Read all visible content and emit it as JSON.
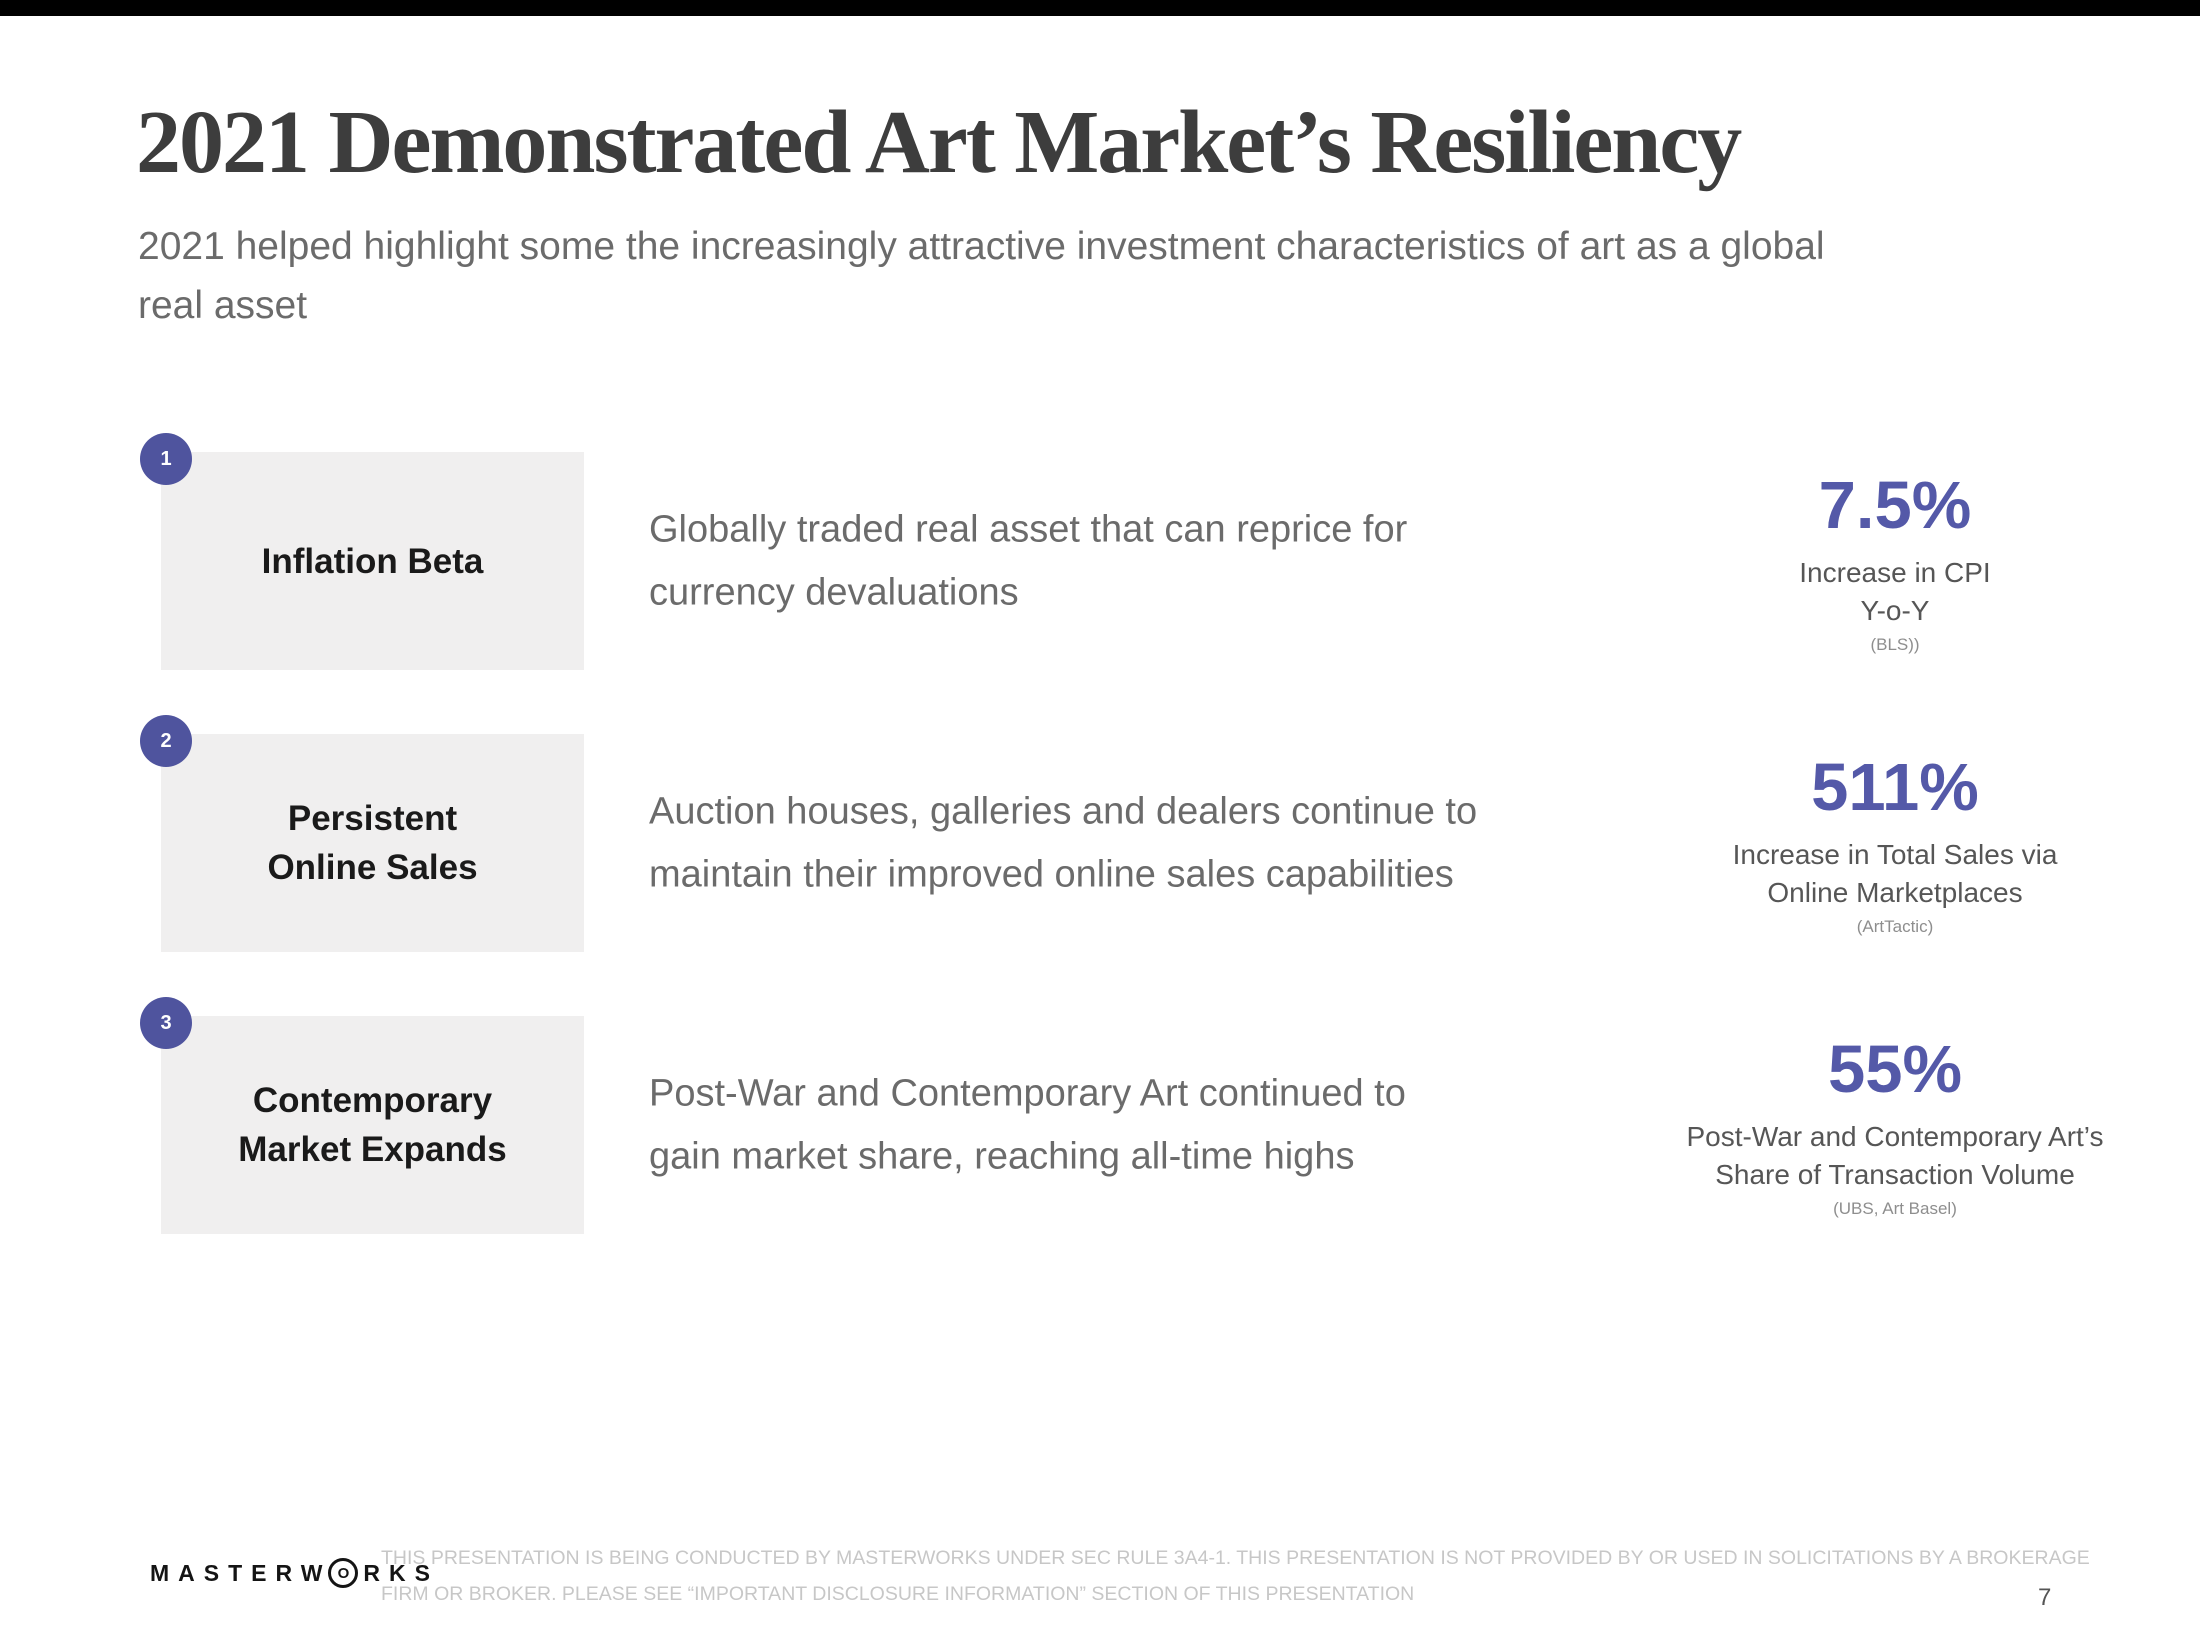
{
  "slide": {
    "title": "2021 Demonstrated Art Market’s Resiliency",
    "subtitle": "2021 helped highlight some the increasingly attractive investment characteristics of art as a global\nreal asset",
    "rows": [
      {
        "number": "1",
        "label": "Inflation Beta",
        "description": "Globally traded real asset that can reprice for\ncurrency devaluations",
        "stat": "7.5%",
        "caption": "Increase in CPI\nY-o-Y",
        "source": "(BLS))"
      },
      {
        "number": "2",
        "label": "Persistent\nOnline Sales",
        "description": "Auction houses, galleries and dealers continue to\nmaintain their improved online sales capabilities",
        "stat": "511%",
        "caption": "Increase in Total Sales via\nOnline Marketplaces",
        "source": "(ArtTactic)"
      },
      {
        "number": "3",
        "label": "Contemporary\nMarket Expands",
        "description": "Post-War and Contemporary Art continued to\ngain market share, reaching all-time highs",
        "stat": "55%",
        "caption": "Post-War and Contemporary Art’s\nShare of Transaction Volume",
        "source": "(UBS, Art Basel)"
      }
    ],
    "footer": {
      "logo_prefix": "MASTERW",
      "logo_o": "O",
      "logo_suffix": "RKS",
      "disclaimer": "THIS PRESENTATION  IS BEING CONDUCTED BY MASTERWORKS UNDER SEC RULE 3A4-1. THIS PRESENTATION  IS NOT PROVIDED BY OR USED IN SOLICITATIONS BY A BROKERAGE\nFIRM OR BROKER. PLEASE SEE “IMPORTANT DISCLOSURE INFORMATION” SECTION OF THIS PRESENTATION",
      "page_number": "7"
    }
  },
  "colors": {
    "accent": "#5459A8",
    "badge": "#4F549E",
    "title": "#3D3D3D",
    "body-text": "#6B6B6B",
    "caption": "#565656",
    "source": "#8E8E8E",
    "box-bg": "#F0EFEF",
    "disclaimer": "#C7C7C7",
    "top-bar": "#000000"
  }
}
